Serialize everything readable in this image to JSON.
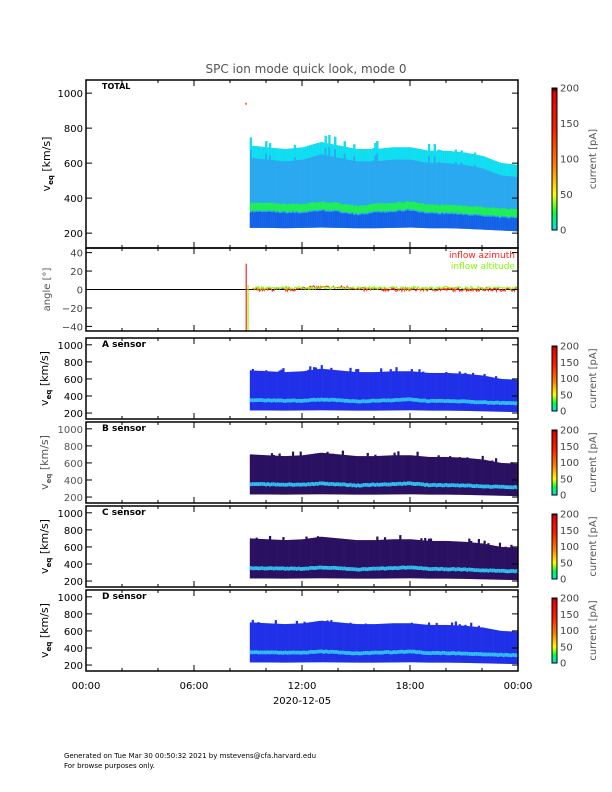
{
  "chart_data": {
    "type": "heatmap",
    "title": "SPC ion mode quick look, mode 0",
    "xlabel": "2020-12-05",
    "xlim_hours": [
      0,
      24
    ],
    "x_tick_labels": [
      "00:00",
      "06:00",
      "12:00",
      "18:00",
      "00:00"
    ],
    "x_tick_hours": [
      0,
      6,
      12,
      18,
      24
    ],
    "data_start_hour": 9.1,
    "profile": {
      "hours": [
        9.1,
        10,
        11,
        12,
        13,
        14,
        15,
        16,
        17,
        18,
        19,
        20,
        21,
        22,
        23,
        24
      ],
      "core_speed_kms": [
        350,
        350,
        345,
        345,
        358,
        350,
        335,
        345,
        350,
        360,
        340,
        340,
        335,
        325,
        318,
        315
      ],
      "upper_edge_kms": [
        700,
        690,
        680,
        690,
        720,
        700,
        680,
        680,
        690,
        690,
        670,
        670,
        660,
        640,
        600,
        590
      ],
      "lower_edge_kms": [
        230,
        230,
        228,
        230,
        232,
        230,
        228,
        228,
        230,
        232,
        228,
        228,
        225,
        220,
        215,
        210
      ]
    },
    "panels": [
      {
        "id": "total",
        "label": "TOTAL",
        "ylabel": "v_eq [km/s]",
        "ylabel_main": "v",
        "ylabel_sub": "eq",
        "ylabel_unit": "[km/s]",
        "ylim": [
          115,
          1075
        ],
        "yticks": [
          200,
          400,
          600,
          800,
          1000
        ],
        "colorbar": {
          "label": "current [pA]",
          "ticks": [
            0,
            50,
            100,
            150,
            200
          ]
        },
        "palette": "total"
      },
      {
        "id": "angle",
        "ylabel": "angle [°]",
        "ylim": [
          -45,
          45
        ],
        "yticks": [
          -40,
          -20,
          0,
          20,
          40
        ],
        "legend": [
          "inflow azimuth",
          "inflow altitude"
        ],
        "legend_colors": [
          "#ff2020",
          "#80ff00"
        ],
        "legend_placement": "top-right"
      },
      {
        "id": "a",
        "label": "A sensor",
        "ylabel_main": "v",
        "ylabel_sub": "eq",
        "ylabel_unit": "[km/s]",
        "ylim": [
          130,
          1080
        ],
        "yticks": [
          200,
          400,
          600,
          800,
          1000
        ],
        "colorbar": {
          "label": "current [pA]",
          "ticks": [
            0,
            50,
            100,
            150,
            200
          ]
        },
        "palette": "blue"
      },
      {
        "id": "b",
        "label": "B sensor",
        "ylabel_main": "v",
        "ylabel_sub": "eq",
        "ylabel_unit": "[km/s]",
        "ylim": [
          130,
          1080
        ],
        "yticks": [
          200,
          400,
          600,
          800,
          1000
        ],
        "colorbar": {
          "label": "current [pA]",
          "ticks": [
            0,
            50,
            100,
            150,
            200
          ]
        },
        "palette": "dark"
      },
      {
        "id": "c",
        "label": "C sensor",
        "ylabel_main": "v",
        "ylabel_sub": "eq",
        "ylabel_unit": "[km/s]",
        "ylim": [
          130,
          1080
        ],
        "yticks": [
          200,
          400,
          600,
          800,
          1000
        ],
        "colorbar": {
          "label": "current [pA]",
          "ticks": [
            0,
            50,
            100,
            150,
            200
          ]
        },
        "palette": "dark"
      },
      {
        "id": "d",
        "label": "D sensor",
        "ylabel_main": "v",
        "ylabel_sub": "eq",
        "ylabel_unit": "[km/s]",
        "ylim": [
          130,
          1080
        ],
        "yticks": [
          200,
          400,
          600,
          800,
          1000
        ],
        "colorbar": {
          "label": "current [pA]",
          "ticks": [
            0,
            50,
            100,
            150,
            200
          ]
        },
        "palette": "blue"
      }
    ],
    "colors": {
      "total_bg": "#2aa8f0",
      "total_top": "#10e0f0",
      "total_low": "#1460e8",
      "total_core": "#20f050",
      "blue_bg": "#2030e8",
      "dark_bg": "#2a1060",
      "sensor_core": "#30c0f0"
    }
  },
  "footer": {
    "line1": "Generated on Tue Mar 30 00:50:32 2021 by mstevens@cfa.harvard.edu",
    "line2": "For browse purposes only."
  }
}
